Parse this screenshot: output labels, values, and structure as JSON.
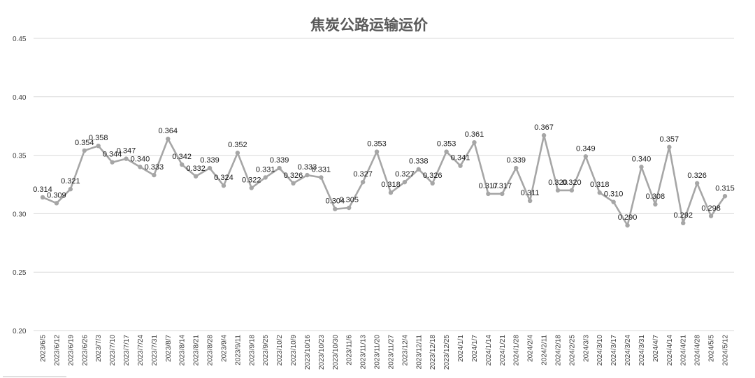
{
  "chart_data": {
    "type": "line",
    "title": "焦炭公路运输运价",
    "xlabel": "",
    "ylabel": "",
    "ylim": [
      0.2,
      0.45
    ],
    "yticks": [
      "0.20",
      "0.25",
      "0.30",
      "0.35",
      "0.40",
      "0.45"
    ],
    "grid": true,
    "legend": "none",
    "colors": {
      "series": "#a6a6a6",
      "grid": "#d9d9d9",
      "title": "#595959"
    },
    "categories": [
      "2023/6/5",
      "2023/6/12",
      "2023/6/19",
      "2023/6/26",
      "2023/7/3",
      "2023/7/10",
      "2023/7/17",
      "2023/7/24",
      "2023/7/31",
      "2023/8/7",
      "2023/8/14",
      "2023/8/21",
      "2023/8/28",
      "2023/9/4",
      "2023/9/11",
      "2023/9/18",
      "2023/9/25",
      "2023/10/2",
      "2023/10/9",
      "2023/10/16",
      "2023/10/23",
      "2023/10/30",
      "2023/11/6",
      "2023/11/13",
      "2023/11/20",
      "2023/11/27",
      "2023/12/4",
      "2023/12/11",
      "2023/12/18",
      "2023/12/25",
      "2024/1/1",
      "2024/1/7",
      "2024/1/14",
      "2024/1/21",
      "2024/1/28",
      "2024/2/4",
      "2024/2/11",
      "2024/2/18",
      "2024/2/25",
      "2024/3/3",
      "2024/3/10",
      "2024/3/17",
      "2024/3/24",
      "2024/3/31",
      "2024/4/7",
      "2024/4/14",
      "2024/4/21",
      "2024/4/28",
      "2024/5/5",
      "2024/5/12"
    ],
    "series": [
      {
        "values": [
          0.314,
          0.309,
          0.321,
          0.354,
          0.358,
          0.344,
          0.347,
          0.34,
          0.333,
          0.364,
          0.342,
          0.332,
          0.339,
          0.324,
          0.352,
          0.322,
          0.331,
          0.339,
          0.326,
          0.333,
          0.331,
          0.304,
          0.305,
          0.327,
          0.353,
          0.318,
          0.327,
          0.338,
          0.326,
          0.353,
          0.341,
          0.361,
          0.317,
          0.317,
          0.339,
          0.311,
          0.367,
          0.32,
          0.32,
          0.349,
          0.318,
          0.31,
          0.29,
          0.34,
          0.308,
          0.357,
          0.292,
          0.326,
          0.298,
          0.315
        ],
        "labels": [
          "0.314",
          "0.309",
          "0.321",
          "0.354",
          "0.358",
          "0.344",
          "0.347",
          "0.340",
          "0.333",
          "0.364",
          "0.342",
          "0.332",
          "0.339",
          "0.324",
          "0.352",
          "0.322",
          "0.331",
          "0.339",
          "0.326",
          "0.333",
          "0.331",
          "0.304",
          "0.305",
          "0.327",
          "0.353",
          "0.318",
          "0.327",
          "0.338",
          "0.326",
          "0.353",
          "0.341",
          "0.361",
          "0.317",
          "0.317",
          "0.339",
          "0.311",
          "0.367",
          "0.320",
          "0.320",
          "0.349",
          "0.318",
          "0.310",
          "0.290",
          "0.340",
          "0.308",
          "0.357",
          "0.292",
          "0.326",
          "0.298",
          "0.315"
        ]
      }
    ]
  }
}
